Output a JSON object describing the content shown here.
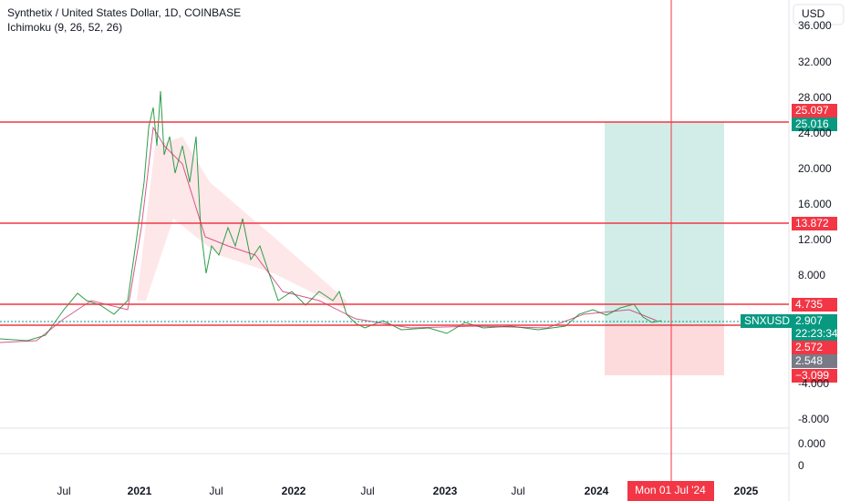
{
  "header": {
    "symbol": "Synthetix / United States Dollar, 1D, COINBASE",
    "indicator": "Ichimoku (9, 26, 52, 26)",
    "currency": "USD"
  },
  "price_axis": [
    "36.000",
    "32.000",
    "28.000",
    "24.000",
    "20.000",
    "16.000",
    "12.000",
    "8.000",
    "-4.000",
    "-8.000",
    "0.000",
    "0"
  ],
  "time_axis": [
    "Jul",
    "2021",
    "Jul",
    "2022",
    "Jul",
    "2023",
    "Jul",
    "2024",
    "2025"
  ],
  "crosshair_time": "Mon 01 Jul '24",
  "price_tags": [
    "25.097",
    "25.016",
    "13.872",
    "4.735",
    "2.907",
    "22:23:34",
    "2.572",
    "2.548",
    "−3.099"
  ],
  "symbol_tag": "SNXUSD"
}
